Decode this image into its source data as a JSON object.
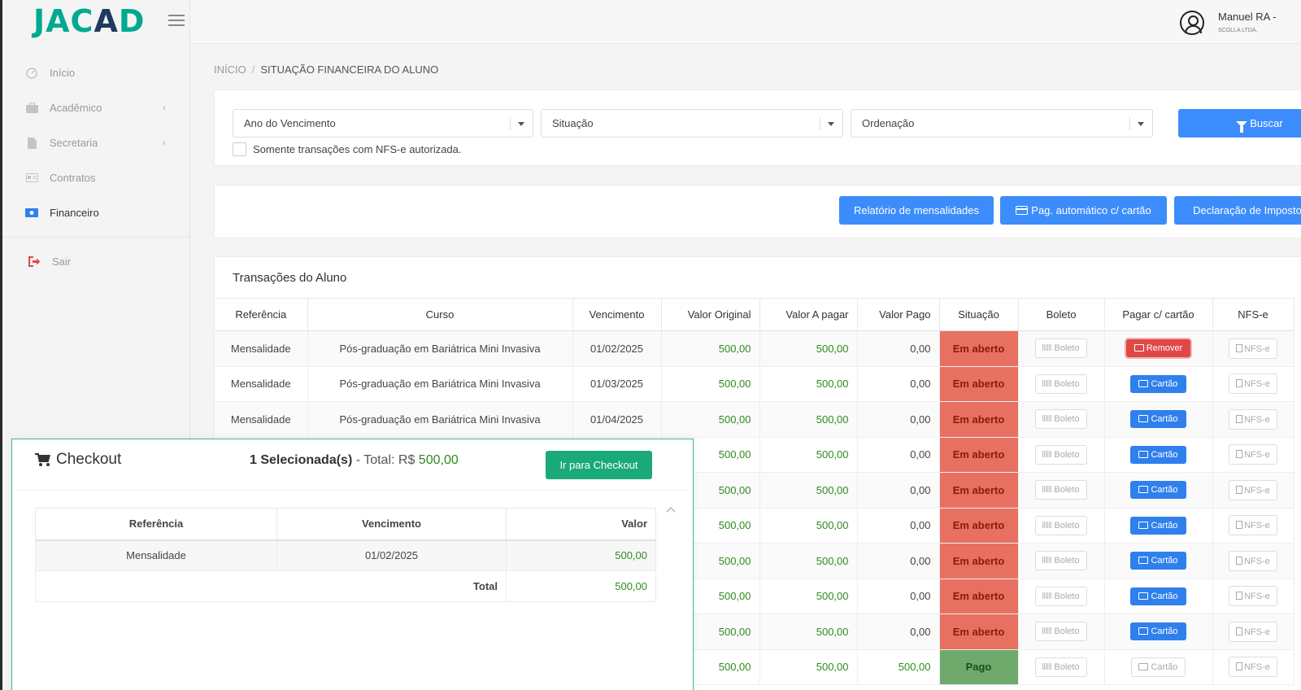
{
  "app": {
    "logo": "JACAD",
    "logo_left": "JAC",
    "logo_slash": "A",
    "logo_right": "D"
  },
  "user": {
    "name": "Manuel RA -",
    "company": "SCOLLA LTDA."
  },
  "sidebar": {
    "items": [
      {
        "label": "Início",
        "icon": "dashboard-icon"
      },
      {
        "label": "Acadêmico",
        "icon": "briefcase-icon",
        "chevron": "‹"
      },
      {
        "label": "Secretaria",
        "icon": "document-icon",
        "chevron": "‹"
      },
      {
        "label": "Contratos",
        "icon": "id-card-icon"
      },
      {
        "label": "Financeiro",
        "icon": "money-icon",
        "active": true
      },
      {
        "label": "Sair",
        "icon": "sign-out-icon"
      }
    ]
  },
  "breadcrumb": {
    "home": "INÍCIO",
    "separator": "/",
    "current": "SITUAÇÃO FINANCEIRA DO ALUNO"
  },
  "filters": {
    "ano": "Ano do Vencimento",
    "situacao": "Situação",
    "ordenacao": "Ordenação",
    "buscar": "Buscar",
    "nfse_checkbox": "Somente transações com NFS-e autorizada."
  },
  "actions": {
    "relatorio": "Relatório de mensalidades",
    "pag_auto": "Pag. automático c/ cartão",
    "declaracao": "Declaração de Imposto"
  },
  "transactions": {
    "title": "Transações do Aluno",
    "columns": [
      "Referência",
      "Curso",
      "Vencimento",
      "Valor Original",
      "Valor A pagar",
      "Valor Pago",
      "Situação",
      "Boleto",
      "Pagar c/ cartão",
      "NFS-e"
    ],
    "rows": [
      {
        "referencia": "Mensalidade",
        "curso": "Pós-graduação em Bariátrica Mini Invasiva",
        "vencimento": "01/02/2025",
        "valor_original": "500,00",
        "valor_a_pagar": "500,00",
        "valor_pago": "0,00",
        "situacao": "Em aberto",
        "boleto": "Boleto",
        "cartao": "Remover",
        "nfse": "NFS-e"
      },
      {
        "referencia": "Mensalidade",
        "curso": "Pós-graduação em Bariátrica Mini Invasiva",
        "vencimento": "01/03/2025",
        "valor_original": "500,00",
        "valor_a_pagar": "500,00",
        "valor_pago": "0,00",
        "situacao": "Em aberto",
        "boleto": "Boleto",
        "cartao": "Cartão",
        "nfse": "NFS-e"
      },
      {
        "referencia": "Mensalidade",
        "curso": "Pós-graduação em Bariátrica Mini Invasiva",
        "vencimento": "01/04/2025",
        "valor_original": "500,00",
        "valor_a_pagar": "500,00",
        "valor_pago": "0,00",
        "situacao": "Em aberto",
        "boleto": "Boleto",
        "cartao": "Cartão",
        "nfse": "NFS-e"
      },
      {
        "referencia": "",
        "curso": "",
        "vencimento": "",
        "valor_original": "500,00",
        "valor_a_pagar": "500,00",
        "valor_pago": "0,00",
        "situacao": "Em aberto",
        "boleto": "Boleto",
        "cartao": "Cartão",
        "nfse": "NFS-e"
      },
      {
        "referencia": "",
        "curso": "",
        "vencimento": "",
        "valor_original": "500,00",
        "valor_a_pagar": "500,00",
        "valor_pago": "0,00",
        "situacao": "Em aberto",
        "boleto": "Boleto",
        "cartao": "Cartão",
        "nfse": "NFS-e"
      },
      {
        "referencia": "",
        "curso": "",
        "vencimento": "",
        "valor_original": "500,00",
        "valor_a_pagar": "500,00",
        "valor_pago": "0,00",
        "situacao": "Em aberto",
        "boleto": "Boleto",
        "cartao": "Cartão",
        "nfse": "NFS-e"
      },
      {
        "referencia": "",
        "curso": "",
        "vencimento": "",
        "valor_original": "500,00",
        "valor_a_pagar": "500,00",
        "valor_pago": "0,00",
        "situacao": "Em aberto",
        "boleto": "Boleto",
        "cartao": "Cartão",
        "nfse": "NFS-e"
      },
      {
        "referencia": "",
        "curso": "",
        "vencimento": "",
        "valor_original": "500,00",
        "valor_a_pagar": "500,00",
        "valor_pago": "0,00",
        "situacao": "Em aberto",
        "boleto": "Boleto",
        "cartao": "Cartão",
        "nfse": "NFS-e"
      },
      {
        "referencia": "",
        "curso": "",
        "vencimento": "",
        "valor_original": "500,00",
        "valor_a_pagar": "500,00",
        "valor_pago": "0,00",
        "situacao": "Em aberto",
        "boleto": "Boleto",
        "cartao": "Cartão",
        "nfse": "NFS-e"
      },
      {
        "referencia": "",
        "curso": "",
        "vencimento": "",
        "valor_original": "500,00",
        "valor_a_pagar": "500,00",
        "valor_pago": "500,00",
        "situacao": "Pago",
        "boleto": "Boleto",
        "cartao": "Cartão",
        "nfse": "NFS-e"
      }
    ]
  },
  "checkout": {
    "title": "Checkout",
    "selected": "1 Selecionada(s)",
    "total_label": " - Total: R$ ",
    "total_value": "500,00",
    "button": "Ir para Checkout",
    "columns": [
      "Referência",
      "Vencimento",
      "Valor"
    ],
    "items": [
      {
        "referencia": "Mensalidade",
        "vencimento": "01/02/2025",
        "valor": "500,00"
      }
    ],
    "footer_label": "Total",
    "footer_value": "500,00"
  },
  "colors": {
    "brand": "#00a98f",
    "primary": "#3c8dfb",
    "open": "#e87060",
    "paid": "#6fa96c",
    "remove": "#e04848",
    "checkout": "#1aa97a"
  }
}
